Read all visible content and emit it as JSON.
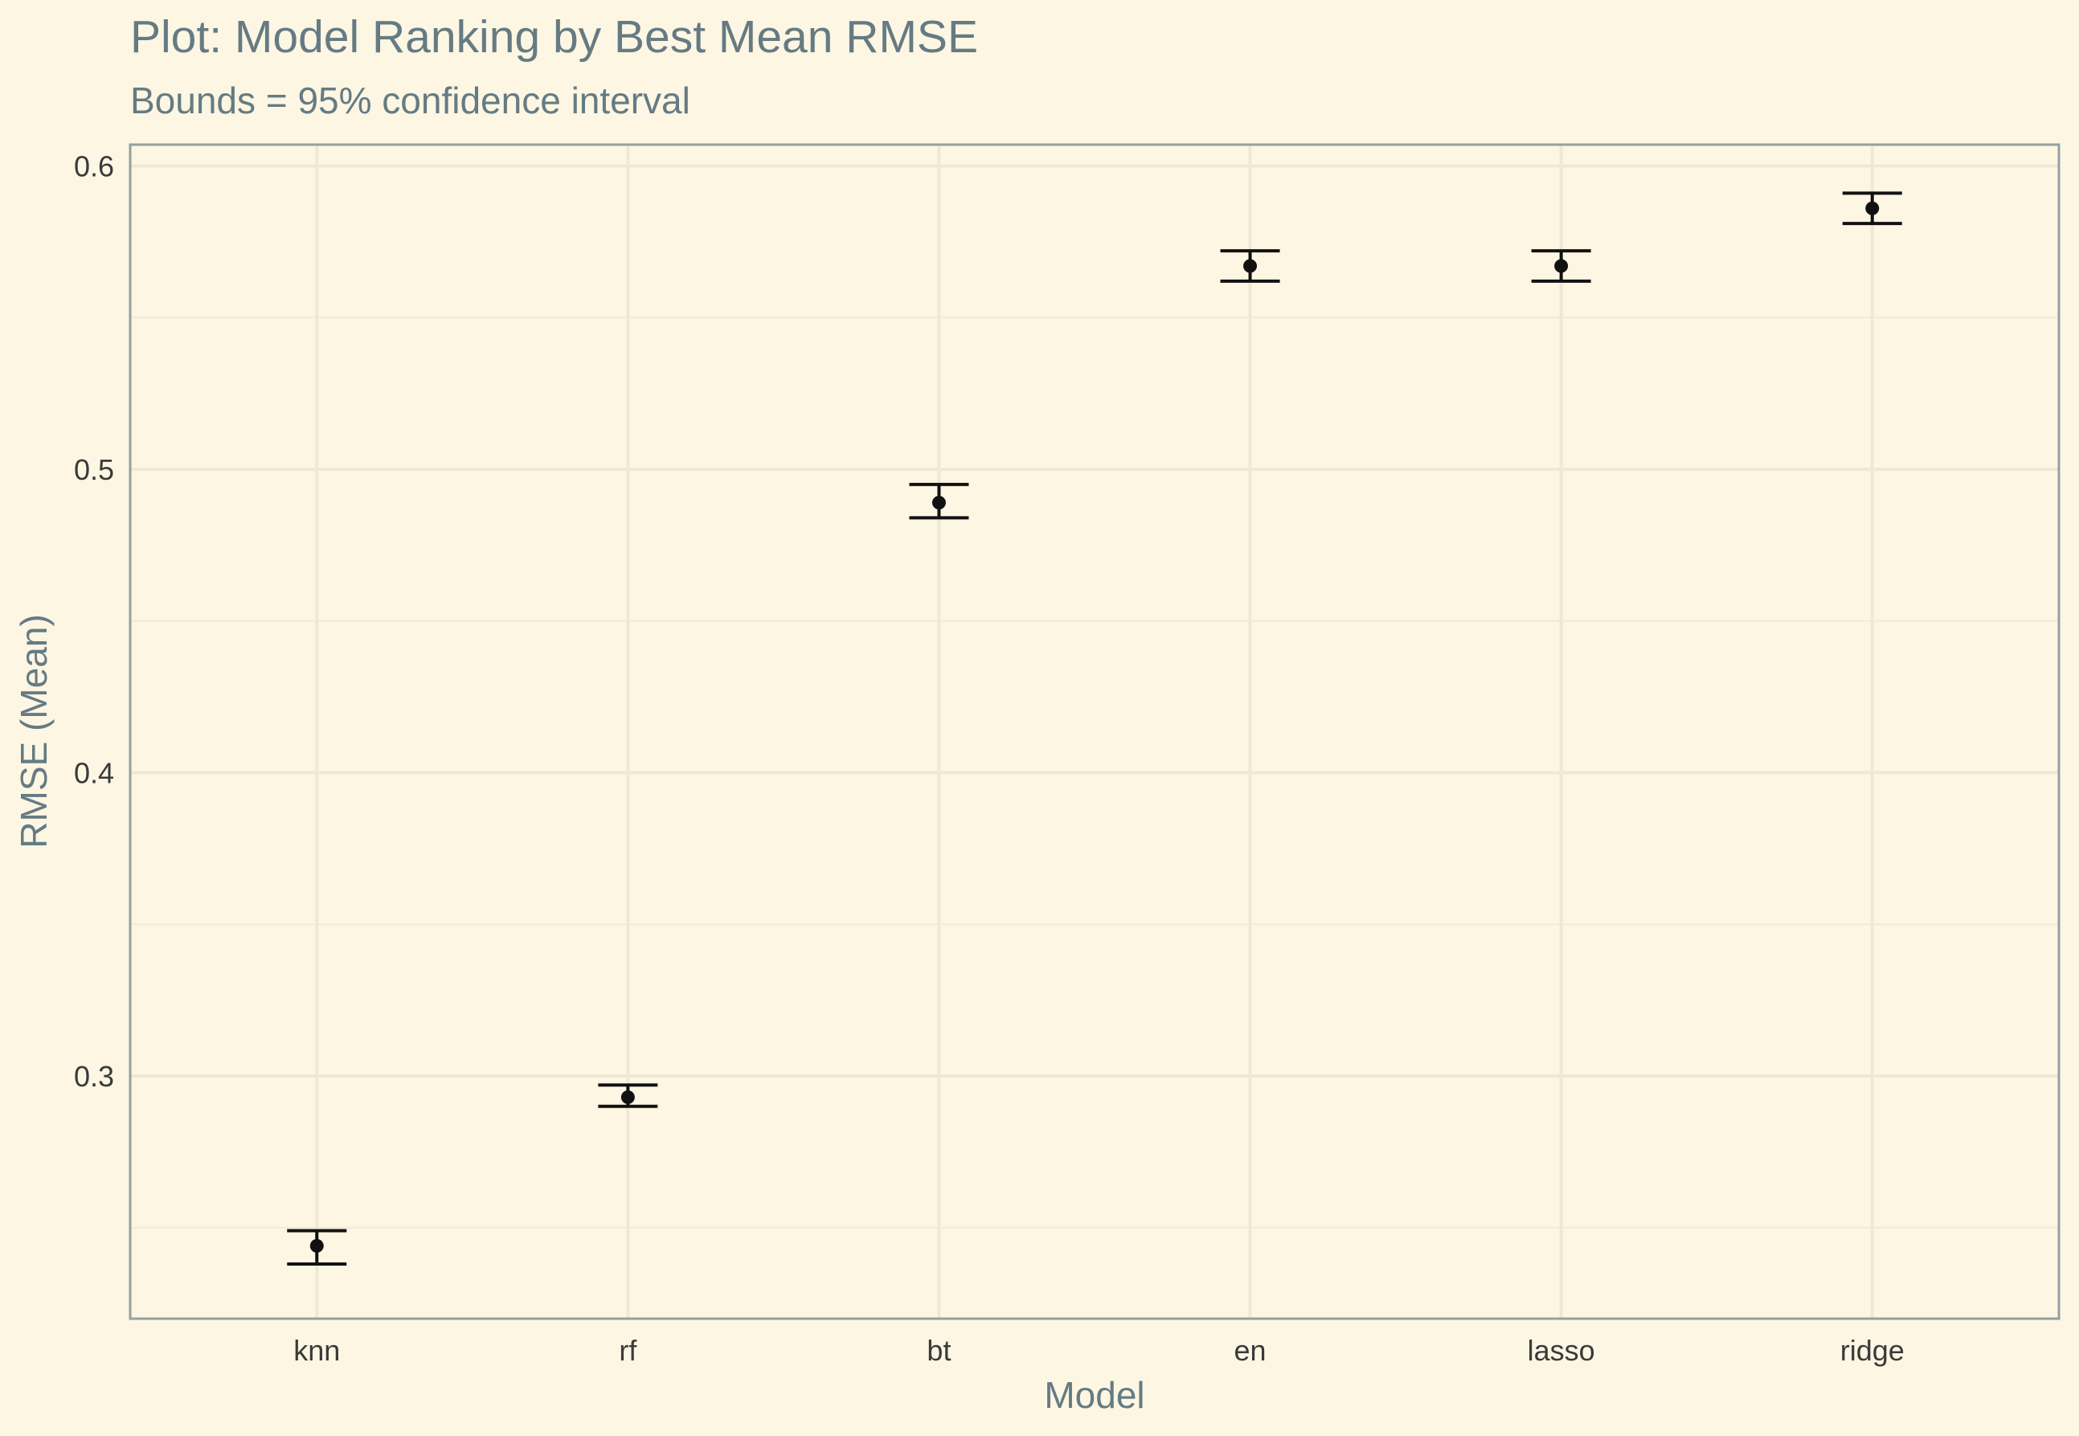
{
  "chart_data": {
    "type": "errorbar",
    "title": "Plot: Model Ranking by Best Mean RMSE",
    "subtitle": "Bounds = 95% confidence interval",
    "xlabel": "Model",
    "ylabel": "RMSE (Mean)",
    "categories": [
      "knn",
      "rf",
      "bt",
      "en",
      "lasso",
      "ridge"
    ],
    "series": [
      {
        "values": [
          0.244,
          0.293,
          0.489,
          0.567,
          0.567,
          0.586
        ],
        "lower": [
          0.238,
          0.29,
          0.484,
          0.562,
          0.562,
          0.581
        ],
        "upper": [
          0.249,
          0.297,
          0.495,
          0.572,
          0.572,
          0.591
        ]
      }
    ],
    "ylim": [
      0.22,
      0.607
    ],
    "yticks": [
      0.3,
      0.4,
      0.5,
      0.6
    ],
    "ytick_labels": [
      "0.3",
      "0.4",
      "0.5",
      "0.6"
    ],
    "grid": true,
    "legend": "none",
    "colors": {
      "background": "#fdf6e3",
      "title": "#657b83",
      "point": "#111111",
      "grid": "#eee8d5",
      "border": "#93a1a1"
    }
  }
}
